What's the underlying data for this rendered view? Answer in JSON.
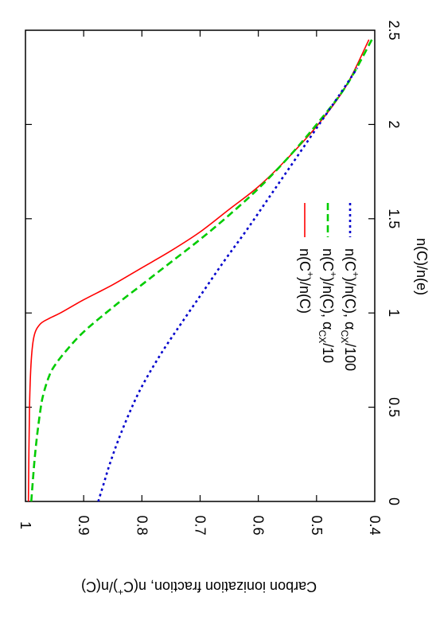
{
  "chart_data": {
    "type": "line",
    "title": "",
    "xlabel": {
      "text": "Carbon ionization fraction, n(C",
      "sup": "+",
      "after": ")/n(C)"
    },
    "ylabel": "n(C)/n(e)",
    "xlim": [
      1.0,
      0.4
    ],
    "ylim": [
      0,
      2.5
    ],
    "xticks": [
      "1",
      "0.9",
      "0.8",
      "0.7",
      "0.6",
      "0.5",
      "0.4"
    ],
    "yticks": [
      "0",
      "0.5",
      "1",
      "1.5",
      "2",
      "2.5"
    ],
    "orientation": "rotated-90",
    "grid": false,
    "legend_position": "right",
    "series": [
      {
        "name": "n(C+)/n(C)",
        "label_parts": {
          "base": "n(C",
          "sup": "+",
          "mid": ")/n(C)",
          "sub": "",
          "tail": ""
        },
        "color": "#ff0000",
        "style": "solid",
        "x": [
          0.995,
          0.993,
          0.99,
          0.985,
          0.975,
          0.96,
          0.94,
          0.9,
          0.85,
          0.8,
          0.75,
          0.7,
          0.65,
          0.6,
          0.55,
          0.5,
          0.45,
          0.41
        ],
        "y": [
          0.0,
          0.5,
          0.75,
          0.88,
          0.94,
          0.97,
          1.0,
          1.07,
          1.15,
          1.24,
          1.33,
          1.43,
          1.55,
          1.67,
          1.82,
          1.99,
          2.2,
          2.45
        ]
      },
      {
        "name": "n(C+)/n(C), αCX/10",
        "label_parts": {
          "base": "n(C",
          "sup": "+",
          "mid": ")/n(C), α",
          "sub": "CX",
          "tail": "/10"
        },
        "color": "#00cc00",
        "style": "dashed",
        "x": [
          0.99,
          0.985,
          0.98,
          0.975,
          0.97,
          0.96,
          0.95,
          0.93,
          0.9,
          0.85,
          0.8,
          0.75,
          0.7,
          0.65,
          0.6,
          0.55,
          0.5,
          0.45,
          0.405
        ],
        "y": [
          0.0,
          0.2,
          0.35,
          0.47,
          0.56,
          0.66,
          0.72,
          0.8,
          0.9,
          1.03,
          1.15,
          1.27,
          1.39,
          1.52,
          1.66,
          1.82,
          2.0,
          2.2,
          2.45
        ]
      },
      {
        "name": "n(C+)/n(C), αCX/100",
        "label_parts": {
          "base": "n(C",
          "sup": "+",
          "mid": ")/n(C), α",
          "sub": "CX",
          "tail": "/100"
        },
        "color": "#0000cc",
        "style": "dotted",
        "x": [
          0.875,
          0.865,
          0.855,
          0.84,
          0.82,
          0.8,
          0.77,
          0.74,
          0.7,
          0.66,
          0.62,
          0.58,
          0.54,
          0.5,
          0.46,
          0.43
        ],
        "y": [
          0.0,
          0.1,
          0.2,
          0.33,
          0.48,
          0.61,
          0.77,
          0.91,
          1.09,
          1.27,
          1.44,
          1.62,
          1.8,
          1.98,
          2.16,
          2.3
        ]
      }
    ]
  }
}
